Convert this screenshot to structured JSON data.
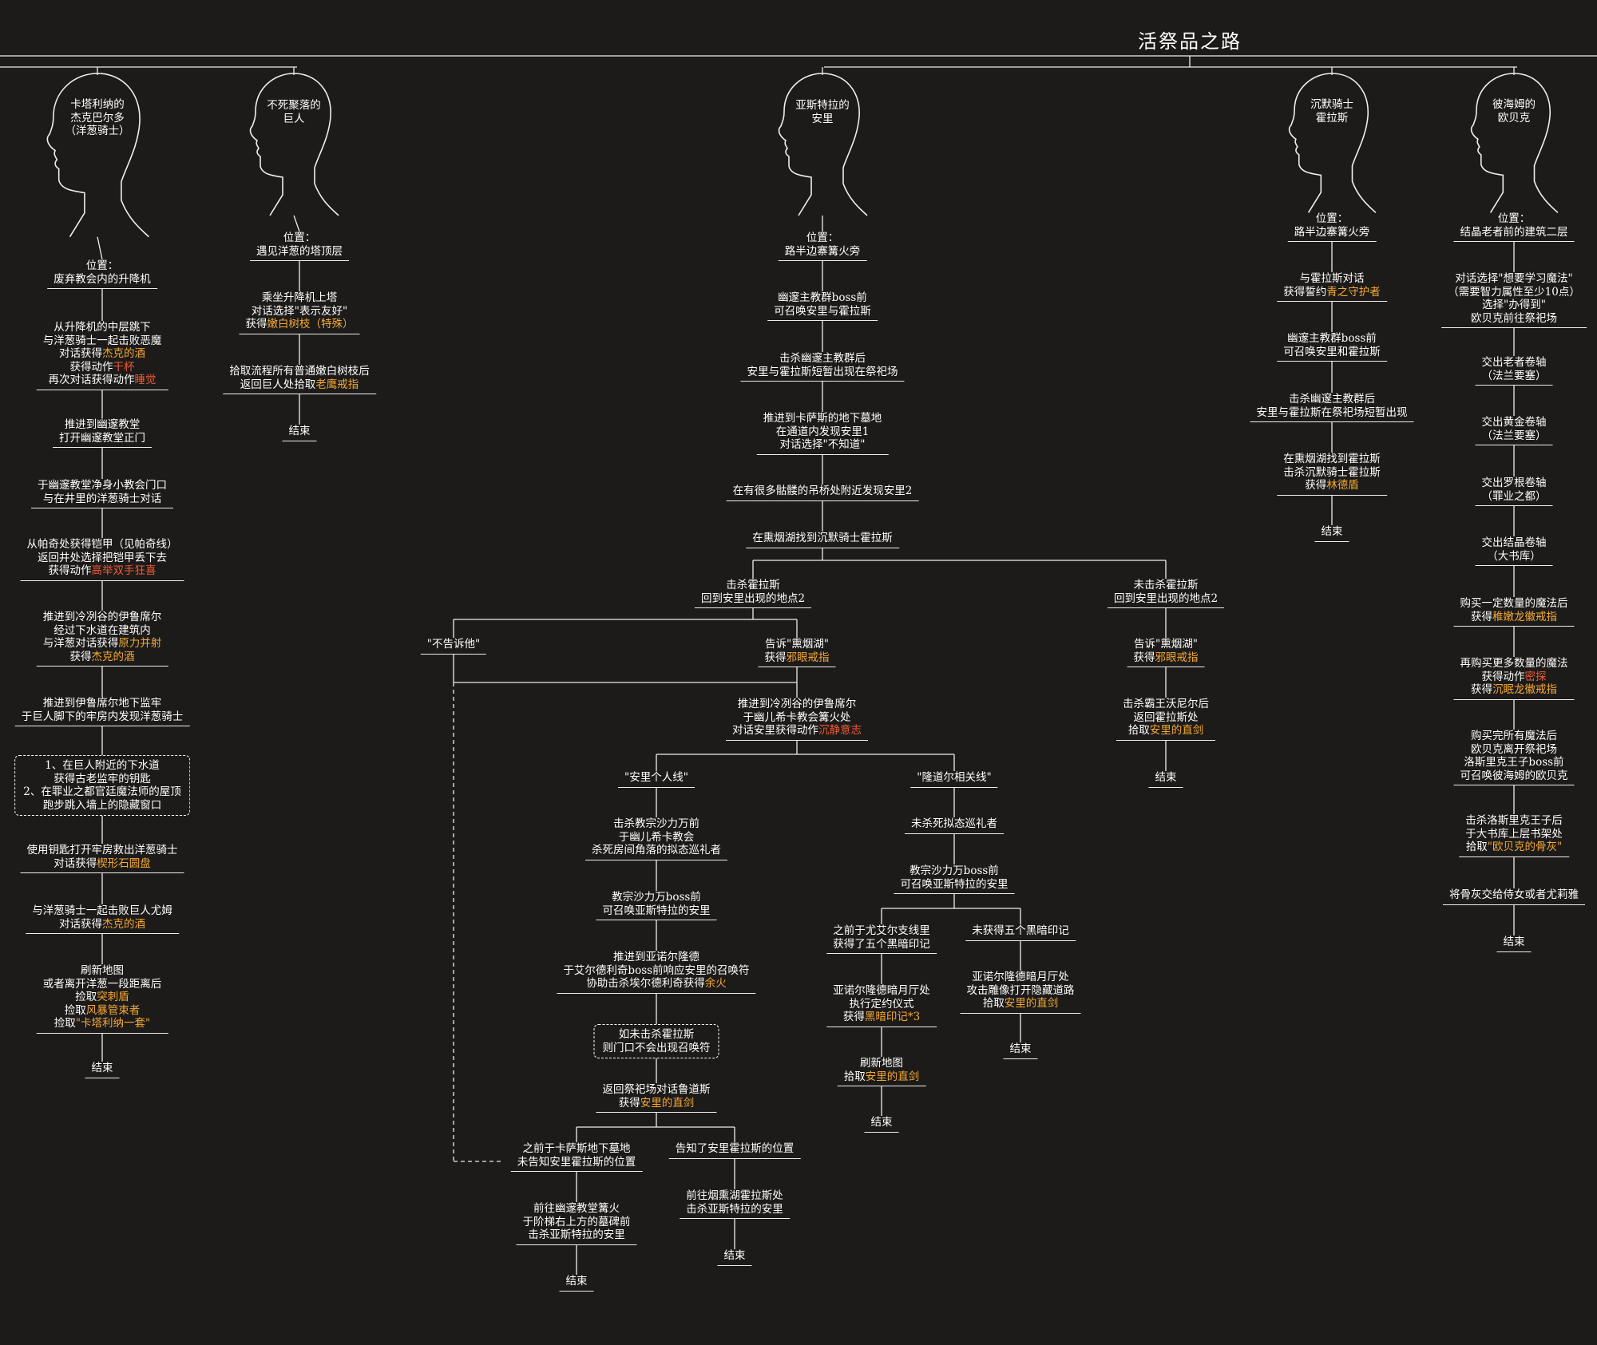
{
  "title": "活祭品之路",
  "colors": {
    "background": "#1c1b1a",
    "line": "#eeeeee",
    "highlight": "#f5a833",
    "highlight_red": "#f05a32"
  },
  "characters": [
    {
      "id": "jerk",
      "name": [
        "卡塔利纳的",
        "杰克巴尔多",
        "（洋葱骑士）"
      ]
    },
    {
      "id": "giant",
      "name": [
        "不死聚落的",
        "巨人"
      ]
    },
    {
      "id": "anri",
      "name": [
        "亚斯特拉的",
        "安里"
      ]
    },
    {
      "id": "horace",
      "name": [
        "沉默骑士",
        "霍拉斯"
      ]
    },
    {
      "id": "orbeck",
      "name": [
        "彼海姆的",
        "欧贝克"
      ]
    }
  ],
  "nodes": {
    "j1": {
      "lines": [
        [
          {
            "t": "位置："
          }
        ],
        [
          {
            "t": "废弃教会内的升降机"
          }
        ]
      ]
    },
    "j2": {
      "lines": [
        [
          {
            "t": "从升降机的中层跳下"
          }
        ],
        [
          {
            "t": "与洋葱骑士一起击败恶魔"
          }
        ],
        [
          {
            "t": "对话获得"
          },
          {
            "t": "杰克的酒",
            "c": "hl"
          }
        ],
        [
          {
            "t": "获得动作"
          },
          {
            "t": "干杯",
            "c": "hr"
          }
        ],
        [
          {
            "t": "再次对话获得动作"
          },
          {
            "t": "睡觉",
            "c": "hr"
          }
        ]
      ]
    },
    "j3": {
      "lines": [
        [
          {
            "t": "推进到幽邃教堂"
          }
        ],
        [
          {
            "t": "打开幽邃教堂正门"
          }
        ]
      ]
    },
    "j4": {
      "lines": [
        [
          {
            "t": "于幽邃教堂净身小教会门口"
          }
        ],
        [
          {
            "t": "与在井里的洋葱骑士对话"
          }
        ]
      ]
    },
    "j5": {
      "lines": [
        [
          {
            "t": "从帕奇处获得铠甲（见帕奇线）"
          }
        ],
        [
          {
            "t": "返回井处选择把铠甲丢下去"
          }
        ],
        [
          {
            "t": "获得动作"
          },
          {
            "t": "高举双手狂喜",
            "c": "hr"
          }
        ]
      ]
    },
    "j6": {
      "lines": [
        [
          {
            "t": "推进到冷冽谷的伊鲁席尔"
          }
        ],
        [
          {
            "t": "经过下水道在建筑内"
          }
        ],
        [
          {
            "t": "与洋葱对话获得"
          },
          {
            "t": "原力并射",
            "c": "hl"
          }
        ],
        [
          {
            "t": "获得"
          },
          {
            "t": "杰克的酒",
            "c": "hl"
          }
        ]
      ]
    },
    "j7": {
      "lines": [
        [
          {
            "t": "推进到伊鲁席尔地下监牢"
          }
        ],
        [
          {
            "t": "于巨人脚下的牢房内发现洋葱骑士"
          }
        ]
      ]
    },
    "j8": {
      "lines": [
        [
          {
            "t": "1、在巨人附近的下水道"
          }
        ],
        [
          {
            "t": "获得古老监牢的钥匙"
          }
        ],
        [
          {
            "t": "2、在罪业之都官廷魔法师的屋顶"
          }
        ],
        [
          {
            "t": "跑步跳入墙上的隐藏窗口"
          }
        ]
      ]
    },
    "j9": {
      "lines": [
        [
          {
            "t": "使用钥匙打开牢房救出洋葱骑士"
          }
        ],
        [
          {
            "t": "对话获得"
          },
          {
            "t": "楔形石圆盘",
            "c": "hl"
          }
        ]
      ]
    },
    "j10": {
      "lines": [
        [
          {
            "t": "与洋葱骑士一起击败巨人尤姆"
          }
        ],
        [
          {
            "t": "对话获得"
          },
          {
            "t": "杰克的酒",
            "c": "hl"
          }
        ]
      ]
    },
    "j11": {
      "lines": [
        [
          {
            "t": "刷新地图"
          }
        ],
        [
          {
            "t": "或者离开洋葱一段距离后"
          }
        ],
        [
          {
            "t": "捡取"
          },
          {
            "t": "突刺盾",
            "c": "hl"
          }
        ],
        [
          {
            "t": "捡取"
          },
          {
            "t": "风暴管束者",
            "c": "hl"
          }
        ],
        [
          {
            "t": "捡取"
          },
          {
            "t": "\"卡塔利纳一套\"",
            "c": "hl"
          }
        ]
      ]
    },
    "j12": {
      "lines": [
        [
          {
            "t": "结束"
          }
        ]
      ]
    },
    "g1": {
      "lines": [
        [
          {
            "t": "位置："
          }
        ],
        [
          {
            "t": "遇见洋葱的塔顶层"
          }
        ]
      ]
    },
    "g2": {
      "lines": [
        [
          {
            "t": "乘坐升降机上塔"
          }
        ],
        [
          {
            "t": "对话选择\"表示友好\""
          }
        ],
        [
          {
            "t": "获得"
          },
          {
            "t": "嫩白树枝（特殊）",
            "c": "hl"
          }
        ]
      ]
    },
    "g3": {
      "lines": [
        [
          {
            "t": "拾取流程所有普通嫩白树枝后"
          }
        ],
        [
          {
            "t": "返回巨人处拾取"
          },
          {
            "t": "老鹰戒指",
            "c": "hl"
          }
        ]
      ]
    },
    "g4": {
      "lines": [
        [
          {
            "t": "结束"
          }
        ]
      ]
    },
    "a1": {
      "lines": [
        [
          {
            "t": "位置："
          }
        ],
        [
          {
            "t": "路半边寨篝火旁"
          }
        ]
      ]
    },
    "a2": {
      "lines": [
        [
          {
            "t": "幽邃主教群boss前"
          }
        ],
        [
          {
            "t": "可召唤安里与霍拉斯"
          }
        ]
      ]
    },
    "a3": {
      "lines": [
        [
          {
            "t": "击杀幽邃主教群后"
          }
        ],
        [
          {
            "t": "安里与霍拉斯短暂出现在祭祀场"
          }
        ]
      ]
    },
    "a4": {
      "lines": [
        [
          {
            "t": "推进到卡萨斯的地下墓地"
          }
        ],
        [
          {
            "t": "在通道内发现安里1"
          }
        ],
        [
          {
            "t": "对话选择\"不知道\""
          }
        ]
      ]
    },
    "a5": {
      "lines": [
        [
          {
            "t": "在有很多骷髅的吊桥处附近发现安里2"
          }
        ]
      ]
    },
    "a6": {
      "lines": [
        [
          {
            "t": "在熏烟湖找到沉默骑士霍拉斯"
          }
        ]
      ]
    },
    "a7": {
      "lines": [
        [
          {
            "t": "击杀霍拉斯"
          }
        ],
        [
          {
            "t": "回到安里出现的地点2"
          }
        ]
      ]
    },
    "a8": {
      "lines": [
        [
          {
            "t": "未击杀霍拉斯"
          }
        ],
        [
          {
            "t": "回到安里出现的地点2"
          }
        ]
      ]
    },
    "a9": {
      "lines": [
        [
          {
            "t": "\"不告诉他\""
          }
        ]
      ]
    },
    "a10": {
      "lines": [
        [
          {
            "t": "告诉\"熏烟湖\""
          }
        ],
        [
          {
            "t": "获得"
          },
          {
            "t": "邪眼戒指",
            "c": "hl"
          }
        ]
      ]
    },
    "a11": {
      "lines": [
        [
          {
            "t": "告诉\"熏烟湖\""
          }
        ],
        [
          {
            "t": "获得"
          },
          {
            "t": "邪眼戒指",
            "c": "hl"
          }
        ]
      ]
    },
    "a12": {
      "lines": [
        [
          {
            "t": "推进到冷冽谷的伊鲁席尔"
          }
        ],
        [
          {
            "t": "于幽儿希卡教会篝火处"
          }
        ],
        [
          {
            "t": "对话安里获得动作"
          },
          {
            "t": "沉静意志",
            "c": "hr"
          }
        ]
      ]
    },
    "a13": {
      "lines": [
        [
          {
            "t": "击杀霸王沃尼尔后"
          }
        ],
        [
          {
            "t": "返回霍拉斯处"
          }
        ],
        [
          {
            "t": "拾取"
          },
          {
            "t": "安里的直剑",
            "c": "hl"
          }
        ]
      ]
    },
    "a14": {
      "lines": [
        [
          {
            "t": "结束"
          }
        ]
      ]
    },
    "a15": {
      "lines": [
        [
          {
            "t": "\"安里个人线\""
          }
        ]
      ]
    },
    "a16": {
      "lines": [
        [
          {
            "t": "\"隆道尔相关线\""
          }
        ]
      ]
    },
    "a17": {
      "lines": [
        [
          {
            "t": "击杀教宗沙力万前"
          }
        ],
        [
          {
            "t": "于幽儿希卡教会"
          }
        ],
        [
          {
            "t": "杀死房间角落的拟态巡礼者"
          }
        ]
      ]
    },
    "a18": {
      "lines": [
        [
          {
            "t": "未杀死拟态巡礼者"
          }
        ]
      ]
    },
    "a19": {
      "lines": [
        [
          {
            "t": "教宗沙力万boss前"
          }
        ],
        [
          {
            "t": "可召唤亚斯特拉的安里"
          }
        ]
      ]
    },
    "a20": {
      "lines": [
        [
          {
            "t": "教宗沙力万boss前"
          }
        ],
        [
          {
            "t": "可召唤亚斯特拉的安里"
          }
        ]
      ]
    },
    "a21": {
      "lines": [
        [
          {
            "t": "推进到亚诺尔隆德"
          }
        ],
        [
          {
            "t": "于艾尔德利奇boss前响应安里的召唤符"
          }
        ],
        [
          {
            "t": "协助击杀埃尔德利奇获得"
          },
          {
            "t": "余火",
            "c": "hl"
          }
        ]
      ]
    },
    "a22": {
      "lines": [
        [
          {
            "t": "之前于尤艾尔支线里"
          }
        ],
        [
          {
            "t": "获得了五个黑暗印记"
          }
        ]
      ]
    },
    "a23": {
      "lines": [
        [
          {
            "t": "未获得五个黑暗印记"
          }
        ]
      ]
    },
    "a24": {
      "lines": [
        [
          {
            "t": "如未击杀霍拉斯"
          }
        ],
        [
          {
            "t": "则门口不会出现召唤符"
          }
        ]
      ]
    },
    "a25": {
      "lines": [
        [
          {
            "t": "亚诺尔隆德暗月厅处"
          }
        ],
        [
          {
            "t": "执行定约仪式"
          }
        ],
        [
          {
            "t": "获得"
          },
          {
            "t": "黑暗印记*3",
            "c": "hl"
          }
        ]
      ]
    },
    "a26": {
      "lines": [
        [
          {
            "t": "亚诺尔隆德暗月厅处"
          }
        ],
        [
          {
            "t": "攻击雕像打开隐藏道路"
          }
        ],
        [
          {
            "t": "拾取"
          },
          {
            "t": "安里的直剑",
            "c": "hl"
          }
        ]
      ]
    },
    "a27": {
      "lines": [
        [
          {
            "t": "结束"
          }
        ]
      ]
    },
    "a28": {
      "lines": [
        [
          {
            "t": "刷新地图"
          }
        ],
        [
          {
            "t": "拾取"
          },
          {
            "t": "安里的直剑",
            "c": "hl"
          }
        ]
      ]
    },
    "a29": {
      "lines": [
        [
          {
            "t": "返回祭祀场对话鲁道斯"
          }
        ],
        [
          {
            "t": "获得"
          },
          {
            "t": "安里的直剑",
            "c": "hl"
          }
        ]
      ]
    },
    "a30": {
      "lines": [
        [
          {
            "t": "结束"
          }
        ]
      ]
    },
    "a31": {
      "lines": [
        [
          {
            "t": "之前于卡萨斯地下墓地"
          }
        ],
        [
          {
            "t": "未告知安里霍拉斯的位置"
          }
        ]
      ]
    },
    "a32": {
      "lines": [
        [
          {
            "t": "告知了安里霍拉斯的位置"
          }
        ]
      ]
    },
    "a33": {
      "lines": [
        [
          {
            "t": "前往幽邃教堂篝火"
          }
        ],
        [
          {
            "t": "于阶梯右上方的墓碑前"
          }
        ],
        [
          {
            "t": "击杀亚斯特拉的安里"
          }
        ]
      ]
    },
    "a34": {
      "lines": [
        [
          {
            "t": "前往烟熏湖霍拉斯处"
          }
        ],
        [
          {
            "t": "击杀亚斯特拉的安里"
          }
        ]
      ]
    },
    "a35": {
      "lines": [
        [
          {
            "t": "结束"
          }
        ]
      ]
    },
    "a36": {
      "lines": [
        [
          {
            "t": "结束"
          }
        ]
      ]
    },
    "h1": {
      "lines": [
        [
          {
            "t": "位置："
          }
        ],
        [
          {
            "t": "路半边寨篝火旁"
          }
        ]
      ]
    },
    "h2": {
      "lines": [
        [
          {
            "t": "与霍拉斯对话"
          }
        ],
        [
          {
            "t": "获得誓约"
          },
          {
            "t": "青之守护者",
            "c": "hl"
          }
        ]
      ]
    },
    "h3": {
      "lines": [
        [
          {
            "t": "幽邃主教群boss前"
          }
        ],
        [
          {
            "t": "可召唤安里和霍拉斯"
          }
        ]
      ]
    },
    "h4": {
      "lines": [
        [
          {
            "t": "击杀幽邃主教群后"
          }
        ],
        [
          {
            "t": "安里与霍拉斯在祭祀场短暂出现"
          }
        ]
      ]
    },
    "h5": {
      "lines": [
        [
          {
            "t": "在熏烟湖找到霍拉斯"
          }
        ],
        [
          {
            "t": "击杀沉默骑士霍拉斯"
          }
        ],
        [
          {
            "t": "获得"
          },
          {
            "t": "林德盾",
            "c": "hl"
          }
        ]
      ]
    },
    "h6": {
      "lines": [
        [
          {
            "t": "结束"
          }
        ]
      ]
    },
    "o1": {
      "lines": [
        [
          {
            "t": "位置："
          }
        ],
        [
          {
            "t": "结晶老者前的建筑二层"
          }
        ]
      ]
    },
    "o2": {
      "lines": [
        [
          {
            "t": "对话选择\"想要学习魔法\""
          }
        ],
        [
          {
            "t": "（需要智力属性至少10点）"
          }
        ],
        [
          {
            "t": "选择\"办得到\""
          }
        ],
        [
          {
            "t": "欧贝克前往祭祀场"
          }
        ]
      ]
    },
    "o3": {
      "lines": [
        [
          {
            "t": "交出老者卷轴"
          }
        ],
        [
          {
            "t": "（法兰要塞）"
          }
        ]
      ]
    },
    "o4": {
      "lines": [
        [
          {
            "t": "交出黄金卷轴"
          }
        ],
        [
          {
            "t": "（法兰要塞）"
          }
        ]
      ]
    },
    "o5": {
      "lines": [
        [
          {
            "t": "交出罗根卷轴"
          }
        ],
        [
          {
            "t": "（罪业之都）"
          }
        ]
      ]
    },
    "o6": {
      "lines": [
        [
          {
            "t": "交出结晶卷轴"
          }
        ],
        [
          {
            "t": "（大书库）"
          }
        ]
      ]
    },
    "o7": {
      "lines": [
        [
          {
            "t": "购买一定数量的魔法后"
          }
        ],
        [
          {
            "t": "获得"
          },
          {
            "t": "稚嫩龙徽戒指",
            "c": "hl"
          }
        ]
      ]
    },
    "o8": {
      "lines": [
        [
          {
            "t": "再购买更多数量的魔法"
          }
        ],
        [
          {
            "t": "获得动作"
          },
          {
            "t": "密探",
            "c": "hr"
          }
        ],
        [
          {
            "t": "获得"
          },
          {
            "t": "沉眠龙徽戒指",
            "c": "hl"
          }
        ]
      ]
    },
    "o9": {
      "lines": [
        [
          {
            "t": "购买完所有魔法后"
          }
        ],
        [
          {
            "t": "欧贝克离开祭祀场"
          }
        ],
        [
          {
            "t": "洛斯里克王子boss前"
          }
        ],
        [
          {
            "t": "可召唤彼海姆的欧贝克"
          }
        ]
      ]
    },
    "o10": {
      "lines": [
        [
          {
            "t": "击杀洛斯里克王子后"
          }
        ],
        [
          {
            "t": "于大书库上层书架处"
          }
        ],
        [
          {
            "t": "拾取"
          },
          {
            "t": "\"欧贝克的骨灰\"",
            "c": "hl"
          }
        ]
      ]
    },
    "o11": {
      "lines": [
        [
          {
            "t": "将骨灰交给侍女或者尤莉雅"
          }
        ]
      ]
    },
    "o12": {
      "lines": [
        [
          {
            "t": "结束"
          }
        ]
      ]
    }
  }
}
